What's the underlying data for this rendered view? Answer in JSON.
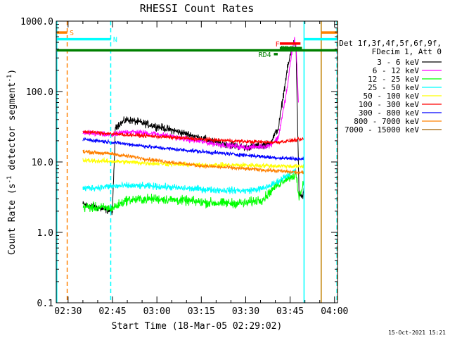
{
  "chart_data": {
    "type": "line",
    "title": "RHESSI Count Rates",
    "xlabel": "Start Time (18-Mar-05 02:29:02)",
    "ylabel_parts": [
      "Count Rate (s",
      "-1",
      " detector segment",
      "-1",
      ")"
    ],
    "yscale": "log",
    "ylim": [
      0.1,
      1000
    ],
    "xlim_min": [
      146,
      241
    ],
    "x_ticks": [
      {
        "label": "02:30",
        "min": 150
      },
      {
        "label": "02:45",
        "min": 165
      },
      {
        "label": "03:00",
        "min": 180
      },
      {
        "label": "03:15",
        "min": 195
      },
      {
        "label": "03:30",
        "min": 210
      },
      {
        "label": "03:45",
        "min": 225
      },
      {
        "label": "04:00",
        "min": 240
      }
    ],
    "y_ticks": [
      {
        "label": "0.1",
        "value": 0.1
      },
      {
        "label": "1.0",
        "value": 1
      },
      {
        "label": "10.0",
        "value": 10
      },
      {
        "label": "100.0",
        "value": 100
      },
      {
        "label": "1000.0",
        "value": 1000
      }
    ],
    "legend_header": [
      "Det 1f,3f,4f,5f,6f,9f,",
      "FDecim 1, Att 0"
    ],
    "series": [
      {
        "name": "3 - 6 keV",
        "color": "#000000",
        "noise": 0.08,
        "x": [
          155,
          165,
          166,
          170,
          180,
          190,
          200,
          210,
          218,
          221,
          224,
          225.5,
          226.5,
          227,
          228,
          229.2,
          229.7
        ],
        "y": [
          2.5,
          2.0,
          32,
          40,
          32,
          25,
          19,
          16,
          18,
          30,
          200,
          400,
          520,
          400,
          3.5,
          3.2,
          4.0
        ]
      },
      {
        "name": "6 - 12 keV",
        "color": "#ff00ff",
        "noise": 0.06,
        "x": [
          155,
          165,
          170,
          180,
          190,
          200,
          210,
          218,
          221,
          224,
          225.5,
          226.5,
          227,
          227.8
        ],
        "y": [
          26,
          24,
          27,
          25,
          21,
          18,
          16,
          17,
          22,
          110,
          350,
          550,
          450,
          70
        ]
      },
      {
        "name": "12 - 25 keV",
        "color": "#00ff00",
        "noise": 0.1,
        "x": [
          155,
          165,
          170,
          180,
          190,
          200,
          210,
          216,
          220,
          224,
          227,
          228,
          229.7
        ],
        "y": [
          2.3,
          2.2,
          2.9,
          3.0,
          2.8,
          2.6,
          2.6,
          3.0,
          4.5,
          6.0,
          6.5,
          3.0,
          5.5
        ]
      },
      {
        "name": "25 - 50 keV",
        "color": "#00ffff",
        "noise": 0.07,
        "x": [
          155,
          165,
          170,
          180,
          190,
          200,
          210,
          216,
          220,
          224,
          227
        ],
        "y": [
          4.2,
          4.5,
          4.6,
          4.5,
          4.2,
          4.0,
          3.9,
          4.2,
          5.0,
          6.5,
          7.5
        ]
      },
      {
        "name": "50 - 100 keV",
        "color": "#ffff00",
        "noise": 0.05,
        "x": [
          155,
          165,
          180,
          195,
          210,
          220,
          229.7
        ],
        "y": [
          10.5,
          10.2,
          9.5,
          9.0,
          9.0,
          8.8,
          8.6
        ]
      },
      {
        "name": "100 - 300 keV",
        "color": "#ff0000",
        "noise": 0.04,
        "x": [
          155,
          165,
          180,
          195,
          210,
          220,
          229.7
        ],
        "y": [
          27,
          25,
          23,
          21,
          19.5,
          19,
          21
        ]
      },
      {
        "name": "300 - 800 keV",
        "color": "#0000ff",
        "noise": 0.04,
        "x": [
          155,
          165,
          180,
          195,
          210,
          220,
          229.7
        ],
        "y": [
          21,
          19,
          16,
          14,
          12.5,
          11.5,
          11.0
        ]
      },
      {
        "name": "800 - 7000 keV",
        "color": "#ff8000",
        "noise": 0.04,
        "x": [
          155,
          165,
          180,
          195,
          210,
          220,
          229.7
        ],
        "y": [
          14,
          13,
          10.5,
          8.8,
          8.0,
          7.5,
          7.0
        ]
      },
      {
        "name": "7000 - 15000 keV",
        "color": "#a06000",
        "noise": 0,
        "x": [],
        "y": []
      }
    ],
    "verticals": [
      {
        "min": 146.2,
        "color": "#00ffff",
        "dash": false
      },
      {
        "min": 149.7,
        "color": "#ff8000",
        "dash": true
      },
      {
        "min": 164.4,
        "color": "#00ffff",
        "dash": true
      },
      {
        "min": 229.7,
        "color": "#00ffff",
        "dash": false
      },
      {
        "min": 235.5,
        "color": "#c08000",
        "dash": false
      },
      {
        "min": 240.8,
        "color": "#00ffff",
        "dash": true
      },
      {
        "min": 241,
        "color": "#ff8000",
        "dash": true
      }
    ],
    "flag_bars": [
      {
        "name": "S",
        "color": "#ff8000",
        "segments": [
          [
            146.2,
            149.7
          ],
          [
            235.5,
            241
          ]
        ],
        "y": 690,
        "label_x": 150.5
      },
      {
        "name": "N",
        "color": "#00ffff",
        "segments": [
          [
            146.2,
            164.4
          ],
          [
            229.7,
            241
          ]
        ],
        "y": 555,
        "label_x": 165.2
      },
      {
        "name": "F",
        "color": "#ff0000",
        "segments": [
          [
            221.5,
            228.5
          ]
        ],
        "y": 480,
        "label_x": 220
      },
      {
        "name": "PDO",
        "color": "#008000",
        "segments": [
          [
            221.5,
            229
          ]
        ],
        "y": 415,
        "label_x": 221.8
      },
      {
        "name": "RD4",
        "color": "#008000",
        "segments": [
          [
            219.5,
            220.8
          ]
        ],
        "y": 340,
        "label_x": 214.3
      },
      {
        "name": "",
        "color": "#008000",
        "segments": [
          [
            146.2,
            241
          ]
        ],
        "y": 385,
        "label_x": null
      }
    ],
    "timestamp": "15-Oct-2021 15:21"
  }
}
